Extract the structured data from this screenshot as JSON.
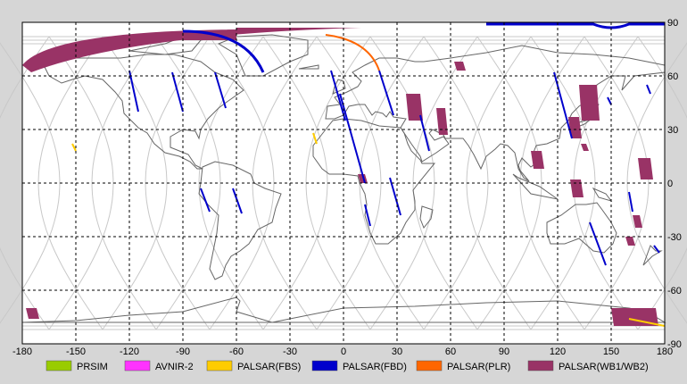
{
  "map": {
    "lon_range": [
      -180,
      180
    ],
    "lat_range": [
      -90,
      90
    ],
    "grid": true,
    "x_ticks": [
      "-180",
      "-150",
      "-120",
      "-90",
      "-60",
      "-30",
      "0",
      "30",
      "60",
      "90",
      "120",
      "150",
      "180"
    ],
    "x_tick_values": [
      -180,
      -150,
      -120,
      -90,
      -60,
      -30,
      0,
      30,
      60,
      90,
      120,
      150,
      180
    ],
    "y_ticks": [
      "90",
      "60",
      "30",
      "0",
      "-30",
      "-60",
      "-90"
    ],
    "y_tick_values": [
      90,
      60,
      30,
      0,
      -30,
      -60,
      -90
    ],
    "background": "#ffffff",
    "grid_color": "#000000",
    "coast_color": "#666666",
    "orbit_color": "#c8c8c8"
  },
  "legend": [
    {
      "label": "PRSIM",
      "color": "#99cc00"
    },
    {
      "label": "AVNIR-2",
      "color": "#ff33ff"
    },
    {
      "label": "PALSAR(FBS)",
      "color": "#ffcc00"
    },
    {
      "label": "PALSAR(FBD)",
      "color": "#0000cc"
    },
    {
      "label": "PALSAR(PLR)",
      "color": "#ff6600"
    },
    {
      "label": "PALSAR(WB1/WB2)",
      "color": "#993366"
    }
  ],
  "chart_data": {
    "type": "map",
    "fbd_strips": [
      {
        "lon": [
          -120,
          -115
        ],
        "lat": [
          63,
          40
        ]
      },
      {
        "lon": [
          -96,
          -90
        ],
        "lat": [
          62,
          40
        ]
      },
      {
        "lon": [
          -72,
          -66
        ],
        "lat": [
          62,
          42
        ]
      },
      {
        "lon": [
          -80,
          -75
        ],
        "lat": [
          -3,
          -16
        ]
      },
      {
        "lon": [
          -62,
          -57
        ],
        "lat": [
          -3,
          -17
        ]
      },
      {
        "lon": [
          -7,
          1
        ],
        "lat": [
          63,
          35
        ]
      },
      {
        "lon": [
          -2,
          12
        ],
        "lat": [
          50,
          0
        ]
      },
      {
        "lon": [
          20,
          28
        ],
        "lat": [
          63,
          38
        ]
      },
      {
        "lon": [
          43,
          48
        ],
        "lat": [
          38,
          18
        ]
      },
      {
        "lon": [
          26,
          32
        ],
        "lat": [
          3,
          -18
        ]
      },
      {
        "lon": [
          12,
          15
        ],
        "lat": [
          -12,
          -24
        ]
      },
      {
        "lon": [
          118,
          128
        ],
        "lat": [
          62,
          25
        ]
      },
      {
        "lon": [
          138,
          147
        ],
        "lat": [
          -22,
          -46
        ]
      },
      {
        "lon": [
          160,
          162
        ],
        "lat": [
          -5,
          -16
        ]
      },
      {
        "lon": [
          170,
          172
        ],
        "lat": [
          55,
          50
        ]
      },
      {
        "lon": [
          148,
          150
        ],
        "lat": [
          48,
          44
        ]
      },
      {
        "lon": [
          174,
          177
        ],
        "lat": [
          -35,
          -39
        ]
      }
    ],
    "wb_swaths": [
      {
        "lon": [
          35,
          43
        ],
        "lat": [
          50,
          35
        ]
      },
      {
        "lon": [
          52,
          57
        ],
        "lat": [
          42,
          27
        ]
      },
      {
        "lon": [
          105,
          111
        ],
        "lat": [
          18,
          8
        ]
      },
      {
        "lon": [
          132,
          142
        ],
        "lat": [
          55,
          35
        ]
      },
      {
        "lon": [
          126,
          132
        ],
        "lat": [
          37,
          25
        ]
      },
      {
        "lon": [
          133,
          136
        ],
        "lat": [
          22,
          18
        ]
      },
      {
        "lon": [
          127,
          133
        ],
        "lat": [
          2,
          -8
        ]
      },
      {
        "lon": [
          165,
          172
        ],
        "lat": [
          14,
          2
        ]
      },
      {
        "lon": [
          162,
          166
        ],
        "lat": [
          -18,
          -25
        ]
      },
      {
        "lon": [
          158,
          162
        ],
        "lat": [
          -30,
          -35
        ]
      },
      {
        "lon": [
          62,
          67
        ],
        "lat": [
          68,
          63
        ]
      },
      {
        "lon": [
          8,
          12
        ],
        "lat": [
          5,
          0
        ]
      },
      {
        "lon": [
          -178,
          -172
        ],
        "lat": [
          -70,
          -76
        ]
      },
      {
        "lon": [
          150,
          175
        ],
        "lat": [
          -70,
          -80
        ]
      }
    ],
    "palsar_fbs": [
      {
        "lon": [
          -152,
          -150
        ],
        "lat": [
          22,
          18
        ]
      },
      {
        "lon": [
          -17,
          -15
        ],
        "lat": [
          28,
          22
        ]
      },
      {
        "lon": [
          160,
          180
        ],
        "lat": [
          -76,
          -80
        ]
      }
    ],
    "palsar_plr_arc": {
      "lon": [
        -10,
        20
      ],
      "lat": [
        83,
        63
      ]
    }
  }
}
